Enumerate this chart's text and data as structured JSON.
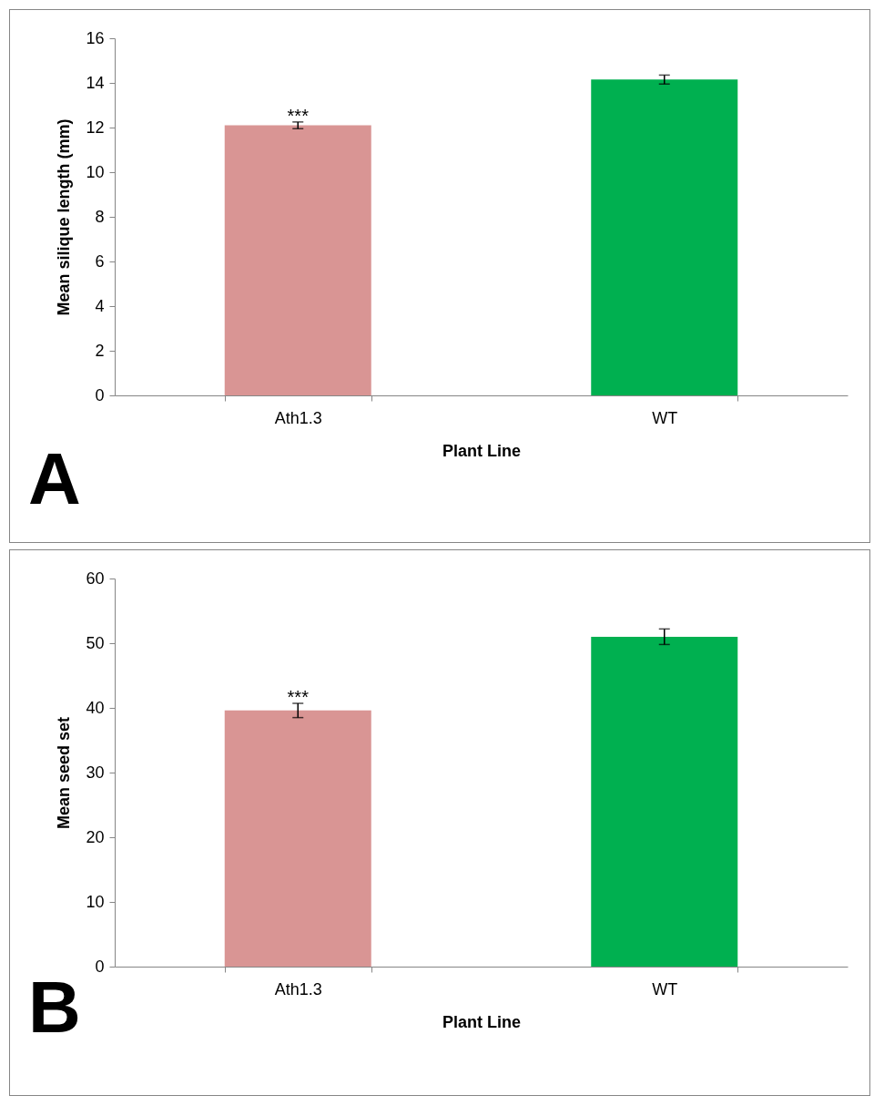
{
  "chart_data": [
    {
      "type": "bar",
      "categories": [
        "Ath1.3",
        "WT"
      ],
      "values": [
        12.1,
        14.15
      ],
      "colors": [
        "#d99594",
        "#00b050"
      ],
      "errors": [
        0.15,
        0.2
      ],
      "ylim": [
        0,
        16
      ],
      "yticks": [
        0,
        2,
        4,
        6,
        8,
        10,
        12,
        14,
        16
      ],
      "ylabel": "Mean silique length (mm)",
      "xlabel": "Plant Line",
      "annotations": [
        "A",
        {
          "text": "***",
          "x": "Ath1.3",
          "y": 12.25
        }
      ]
    },
    {
      "type": "bar",
      "categories": [
        "Ath1.3",
        "WT"
      ],
      "values": [
        39.6,
        51.0
      ],
      "colors": [
        "#d99594",
        "#00b050"
      ],
      "errors": [
        1.1,
        1.2
      ],
      "ylim": [
        0,
        60
      ],
      "yticks": [
        0,
        10,
        20,
        30,
        40,
        50,
        60
      ],
      "ylabel": "Mean seed set",
      "xlabel": "Plant Line",
      "annotations": [
        "B",
        {
          "text": "***",
          "x": "Ath1.3",
          "y": 40.7
        }
      ]
    }
  ]
}
